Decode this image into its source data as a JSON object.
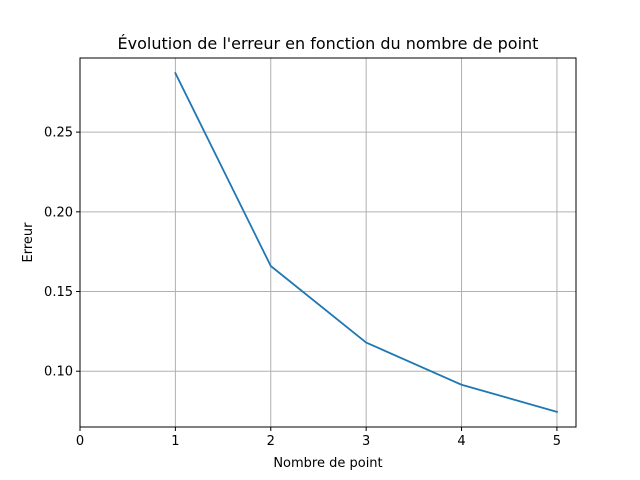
{
  "chart_data": {
    "type": "line",
    "title": "Évolution de l'erreur en fonction du nombre de point",
    "xlabel": "Nombre de point",
    "ylabel": "Erreur",
    "xlim": [
      0,
      5.2
    ],
    "ylim": [
      0.065,
      0.2965
    ],
    "xticks": [
      0,
      1,
      2,
      3,
      4,
      5
    ],
    "xtick_labels": [
      "0",
      "1",
      "2",
      "3",
      "4",
      "5"
    ],
    "yticks": [
      0.1,
      0.15,
      0.2,
      0.25
    ],
    "ytick_labels": [
      "0.10",
      "0.15",
      "0.20",
      "0.25"
    ],
    "grid": true,
    "series": [
      {
        "color": "#1f77b4",
        "x": [
          1,
          2,
          3,
          4,
          5
        ],
        "y": [
          0.287,
          0.166,
          0.118,
          0.0915,
          0.0745
        ]
      }
    ]
  }
}
